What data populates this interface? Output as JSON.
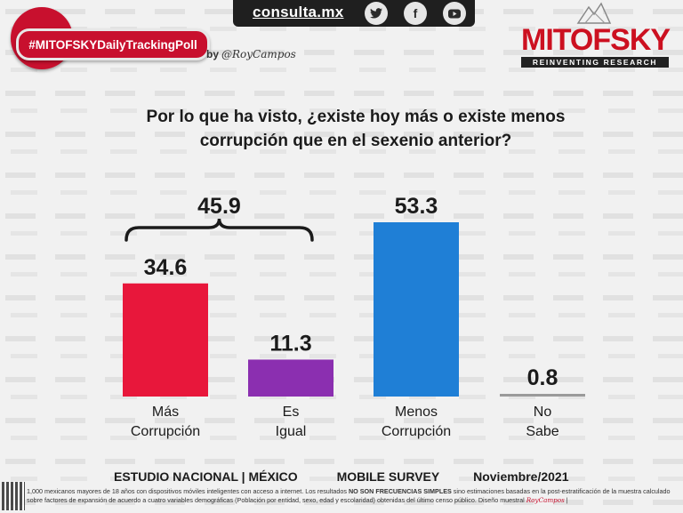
{
  "header": {
    "hashtag": "#MITOFSKYDailyTrackingPoll",
    "byline_prefix": "by",
    "byline_author": "@RoyCampos",
    "website": "consulta.mx",
    "social_icons": [
      "twitter-icon",
      "facebook-icon",
      "youtube-icon"
    ],
    "logo_name": "MITOFSKY",
    "logo_tagline": "REINVENTING RESEARCH",
    "brand_color": "#c8102e"
  },
  "question": {
    "line1": "Por lo que ha visto, ¿existe hoy más o existe menos",
    "line2": "corrupción que en el sexenio anterior?"
  },
  "chart_data": {
    "type": "bar",
    "title": "Por lo que ha visto, ¿existe hoy más o existe menos corrupción que en el sexenio anterior?",
    "categories": [
      [
        "Más",
        "Corrupción"
      ],
      [
        "Es",
        "Igual"
      ],
      [
        "Menos",
        "Corrupción"
      ],
      [
        "No",
        "Sabe"
      ]
    ],
    "values": [
      34.6,
      11.3,
      53.3,
      0.8
    ],
    "value_labels": [
      "34.6",
      "11.3",
      "53.3",
      "0.8"
    ],
    "colors": [
      "#e8173b",
      "#8b2fb0",
      "#1f7fd6",
      "#9a9a9a"
    ],
    "bracket": {
      "label": "45.9",
      "spans": [
        0,
        1
      ]
    },
    "ylim": [
      0,
      55
    ],
    "xlabel": "",
    "ylabel": ""
  },
  "footer": {
    "study": "ESTUDIO NACIONAL | MÉXICO",
    "method": "MOBILE SURVEY",
    "date": "Noviembre/2021",
    "note_part1": "1,000 mexicanos mayores de 18 años con dispositivos móviles inteligentes con acceso a internet. Los resultados",
    "note_bold": "NO SON FRECUENCIAS SIMPLES",
    "note_part2": "sino estimaciones basadas en la post-estratificación de la muestra calculado sobre factores de expansión de acuerdo a cuatro variables demográficas (Población por entidad, sexo, edad y escolaridad) obtenidas del último censo público. Diseño muestral",
    "note_signature": "RoyCampos",
    "note_end": "|"
  }
}
